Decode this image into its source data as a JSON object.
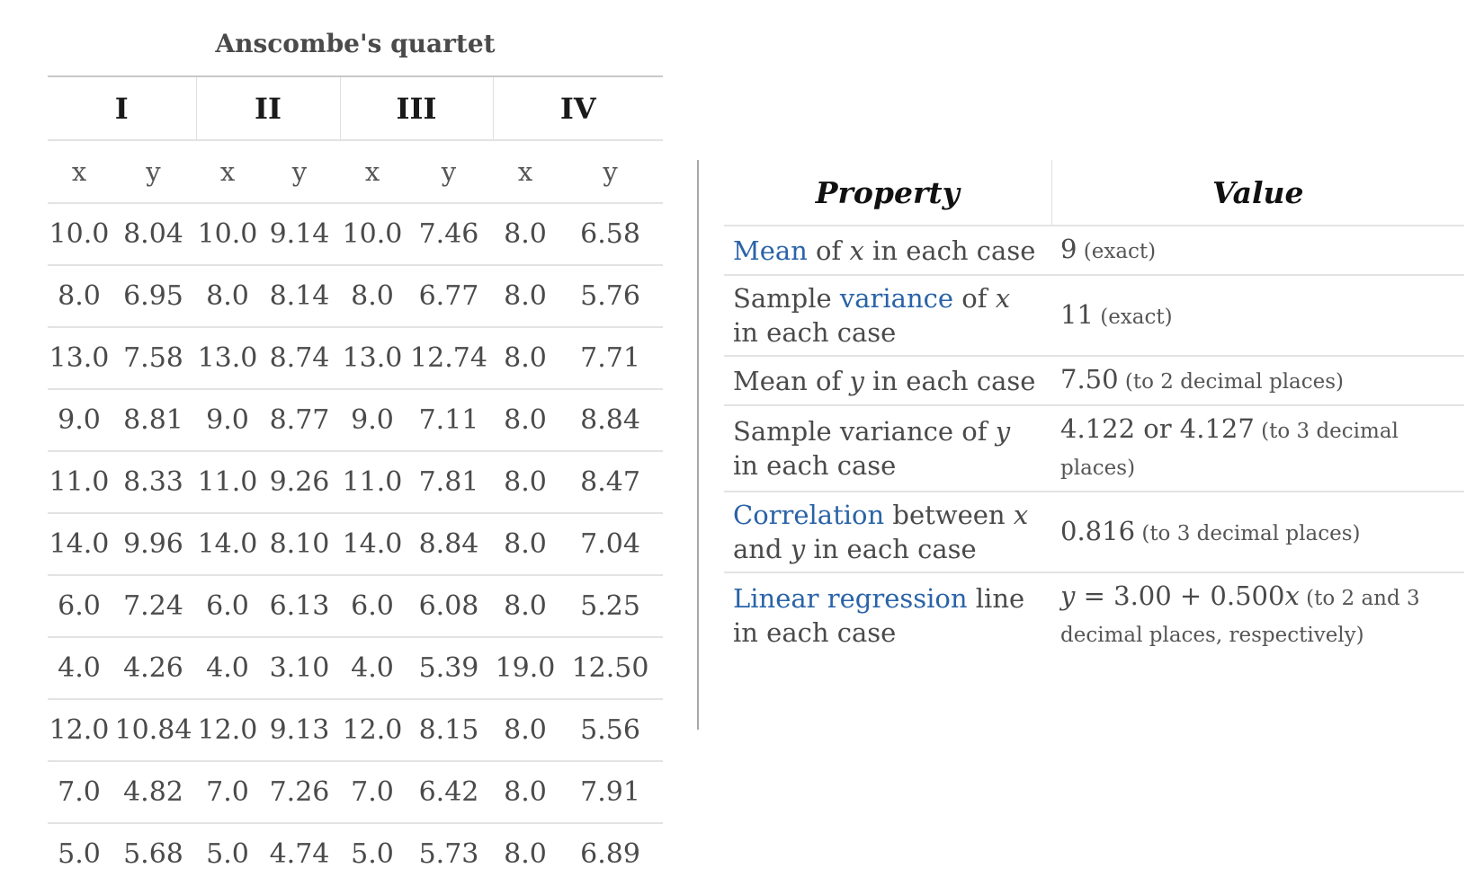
{
  "quartet": {
    "title": "Anscombe's quartet",
    "groups": [
      "I",
      "II",
      "III",
      "IV"
    ],
    "subheaders": [
      "x",
      "y",
      "x",
      "y",
      "x",
      "y",
      "x",
      "y"
    ],
    "rows": [
      [
        "10.0",
        "8.04",
        "10.0",
        "9.14",
        "10.0",
        "7.46",
        "8.0",
        "6.58"
      ],
      [
        "8.0",
        "6.95",
        "8.0",
        "8.14",
        "8.0",
        "6.77",
        "8.0",
        "5.76"
      ],
      [
        "13.0",
        "7.58",
        "13.0",
        "8.74",
        "13.0",
        "12.74",
        "8.0",
        "7.71"
      ],
      [
        "9.0",
        "8.81",
        "9.0",
        "8.77",
        "9.0",
        "7.11",
        "8.0",
        "8.84"
      ],
      [
        "11.0",
        "8.33",
        "11.0",
        "9.26",
        "11.0",
        "7.81",
        "8.0",
        "8.47"
      ],
      [
        "14.0",
        "9.96",
        "14.0",
        "8.10",
        "14.0",
        "8.84",
        "8.0",
        "7.04"
      ],
      [
        "6.0",
        "7.24",
        "6.0",
        "6.13",
        "6.0",
        "6.08",
        "8.0",
        "5.25"
      ],
      [
        "4.0",
        "4.26",
        "4.0",
        "3.10",
        "4.0",
        "5.39",
        "19.0",
        "12.50"
      ],
      [
        "12.0",
        "10.84",
        "12.0",
        "9.13",
        "12.0",
        "8.15",
        "8.0",
        "5.56"
      ],
      [
        "7.0",
        "4.82",
        "7.0",
        "7.26",
        "7.0",
        "6.42",
        "8.0",
        "7.91"
      ],
      [
        "5.0",
        "5.68",
        "5.0",
        "4.74",
        "5.0",
        "5.73",
        "8.0",
        "6.89"
      ]
    ]
  },
  "properties": {
    "header": {
      "property": "Property",
      "value": "Value"
    },
    "rows": [
      {
        "property": [
          {
            "text": "Mean",
            "style": "link"
          },
          {
            "text": " of ",
            "style": "plain"
          },
          {
            "text": "x",
            "style": "var"
          },
          {
            "text": " in each case",
            "style": "plain"
          }
        ],
        "value": [
          {
            "text": "9",
            "style": "plain"
          },
          {
            "text": " (exact)",
            "style": "note"
          }
        ]
      },
      {
        "property": [
          {
            "text": "Sample ",
            "style": "plain"
          },
          {
            "text": "variance",
            "style": "link"
          },
          {
            "text": " of ",
            "style": "plain"
          },
          {
            "text": "x",
            "style": "var"
          },
          {
            "text": " in each case",
            "style": "plain"
          }
        ],
        "value": [
          {
            "text": "11",
            "style": "plain"
          },
          {
            "text": " (exact)",
            "style": "note"
          }
        ]
      },
      {
        "property": [
          {
            "text": "Mean of ",
            "style": "plain"
          },
          {
            "text": "y",
            "style": "var"
          },
          {
            "text": " in each case",
            "style": "plain"
          }
        ],
        "value": [
          {
            "text": "7.50",
            "style": "plain"
          },
          {
            "text": " (to 2 decimal places)",
            "style": "note"
          }
        ]
      },
      {
        "property": [
          {
            "text": "Sample variance of ",
            "style": "plain"
          },
          {
            "text": "y",
            "style": "var"
          },
          {
            "text": " in each case",
            "style": "plain"
          }
        ],
        "value": [
          {
            "text": "4.122 or 4.127",
            "style": "plain"
          },
          {
            "text": " (to 3 decimal places)",
            "style": "note"
          }
        ]
      },
      {
        "property": [
          {
            "text": "Correlation",
            "style": "link"
          },
          {
            "text": " between ",
            "style": "plain"
          },
          {
            "text": "x",
            "style": "var"
          },
          {
            "text": " and ",
            "style": "plain"
          },
          {
            "text": "y",
            "style": "var"
          },
          {
            "text": " in each case",
            "style": "plain"
          }
        ],
        "value": [
          {
            "text": "0.816",
            "style": "plain"
          },
          {
            "text": " (to 3 decimal places)",
            "style": "note"
          }
        ]
      },
      {
        "property": [
          {
            "text": "Linear regression",
            "style": "link"
          },
          {
            "text": " line in each case",
            "style": "plain"
          }
        ],
        "value": [
          {
            "text": "y",
            "style": "var"
          },
          {
            "text": " = 3.00 + 0.500",
            "style": "plain"
          },
          {
            "text": "x",
            "style": "var"
          },
          {
            "text": " (to 2 and 3 decimal places, respectively)",
            "style": "note"
          }
        ]
      }
    ]
  }
}
